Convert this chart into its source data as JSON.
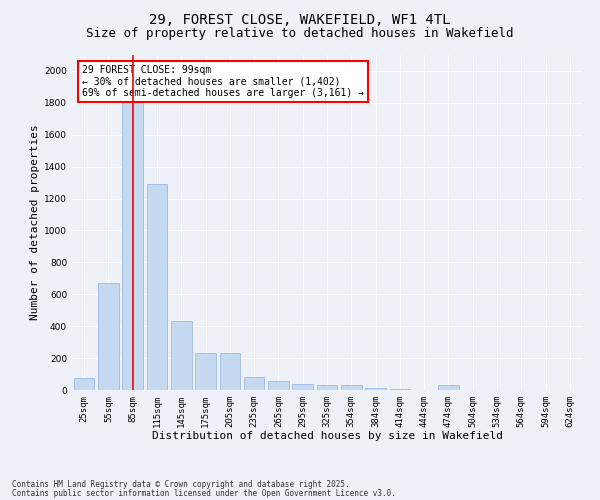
{
  "title1": "29, FOREST CLOSE, WAKEFIELD, WF1 4TL",
  "title2": "Size of property relative to detached houses in Wakefield",
  "xlabel": "Distribution of detached houses by size in Wakefield",
  "ylabel": "Number of detached properties",
  "categories": [
    "25sqm",
    "55sqm",
    "85sqm",
    "115sqm",
    "145sqm",
    "175sqm",
    "205sqm",
    "235sqm",
    "265sqm",
    "295sqm",
    "325sqm",
    "354sqm",
    "384sqm",
    "414sqm",
    "444sqm",
    "474sqm",
    "504sqm",
    "534sqm",
    "564sqm",
    "594sqm",
    "624sqm"
  ],
  "values": [
    75,
    670,
    1870,
    1290,
    430,
    235,
    235,
    80,
    55,
    35,
    30,
    30,
    10,
    5,
    0,
    30,
    0,
    0,
    0,
    0,
    0
  ],
  "bar_color": "#c5d9f1",
  "bar_edge_color": "#8db4e2",
  "red_line_index": 2,
  "ylim": [
    0,
    2100
  ],
  "yticks": [
    0,
    200,
    400,
    600,
    800,
    1000,
    1200,
    1400,
    1600,
    1800,
    2000
  ],
  "annotation_box_text": "29 FOREST CLOSE: 99sqm\n← 30% of detached houses are smaller (1,402)\n69% of semi-detached houses are larger (3,161) →",
  "footer1": "Contains HM Land Registry data © Crown copyright and database right 2025.",
  "footer2": "Contains public sector information licensed under the Open Government Licence v3.0.",
  "bg_color": "#eef2f8",
  "plot_bg_color": "#eef2f8",
  "grid_color": "#ffffff",
  "title_fontsize": 10,
  "subtitle_fontsize": 9,
  "tick_fontsize": 6.5,
  "label_fontsize": 8,
  "footer_fontsize": 5.5,
  "annot_fontsize": 7
}
